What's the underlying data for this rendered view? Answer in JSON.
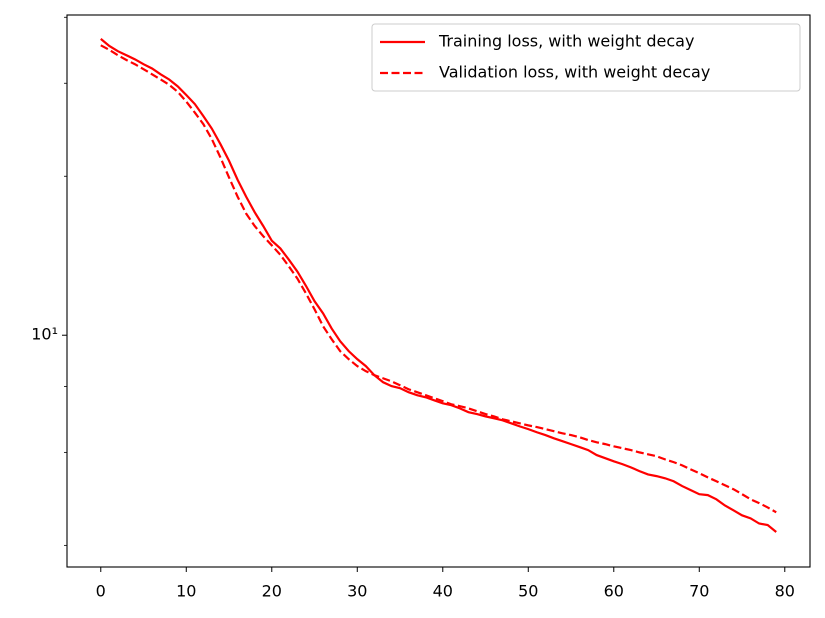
{
  "chart_data": {
    "type": "line",
    "xscale": "linear",
    "yscale": "log",
    "x": [
      0,
      1,
      2,
      3,
      4,
      5,
      6,
      7,
      8,
      9,
      10,
      11,
      12,
      13,
      14,
      15,
      16,
      17,
      18,
      19,
      20,
      21,
      22,
      23,
      24,
      25,
      26,
      27,
      28,
      29,
      30,
      31,
      32,
      33,
      34,
      35,
      36,
      37,
      38,
      39,
      40,
      41,
      42,
      43,
      44,
      45,
      46,
      47,
      48,
      49,
      50,
      51,
      52,
      53,
      54,
      55,
      56,
      57,
      58,
      59,
      60,
      61,
      62,
      63,
      64,
      65,
      66,
      67,
      68,
      69,
      70,
      71,
      72,
      73,
      74,
      75,
      76,
      77,
      78,
      79
    ],
    "series": [
      {
        "name": "Training loss, with weight decay",
        "color": "#ff0000",
        "linestyle": "solid",
        "values": [
          36.4,
          35.3,
          34.5,
          33.9,
          33.3,
          32.6,
          32.0,
          31.2,
          30.5,
          29.6,
          28.5,
          27.4,
          26.0,
          24.6,
          23.0,
          21.4,
          19.7,
          18.3,
          17.1,
          16.1,
          15.1,
          14.6,
          13.9,
          13.2,
          12.4,
          11.6,
          11.0,
          10.3,
          9.74,
          9.33,
          9.01,
          8.74,
          8.4,
          8.15,
          8.01,
          7.94,
          7.8,
          7.7,
          7.63,
          7.53,
          7.43,
          7.37,
          7.27,
          7.15,
          7.09,
          7.02,
          6.96,
          6.9,
          6.81,
          6.72,
          6.64,
          6.55,
          6.47,
          6.38,
          6.3,
          6.22,
          6.14,
          6.06,
          5.93,
          5.85,
          5.77,
          5.7,
          5.62,
          5.53,
          5.45,
          5.41,
          5.36,
          5.29,
          5.18,
          5.09,
          5.0,
          4.98,
          4.89,
          4.76,
          4.66,
          4.56,
          4.5,
          4.4,
          4.37,
          4.24
        ]
      },
      {
        "name": "Validation loss, with weight decay",
        "color": "#ff0000",
        "linestyle": "dashed",
        "values": [
          35.4,
          34.7,
          33.9,
          33.2,
          32.6,
          31.9,
          31.2,
          30.5,
          29.8,
          28.9,
          27.7,
          26.4,
          25.1,
          23.5,
          21.7,
          19.9,
          18.3,
          17.0,
          16.1,
          15.4,
          14.8,
          14.2,
          13.5,
          12.8,
          12.0,
          11.2,
          10.4,
          9.83,
          9.33,
          9.01,
          8.74,
          8.55,
          8.4,
          8.29,
          8.18,
          8.04,
          7.9,
          7.8,
          7.7,
          7.6,
          7.5,
          7.4,
          7.34,
          7.27,
          7.18,
          7.09,
          7.02,
          6.93,
          6.87,
          6.81,
          6.75,
          6.7,
          6.64,
          6.58,
          6.52,
          6.47,
          6.41,
          6.33,
          6.27,
          6.22,
          6.16,
          6.11,
          6.06,
          6.0,
          5.95,
          5.9,
          5.82,
          5.75,
          5.67,
          5.57,
          5.48,
          5.38,
          5.29,
          5.2,
          5.11,
          5.0,
          4.89,
          4.81,
          4.72,
          4.62
        ]
      }
    ],
    "xlim": [
      -3.95,
      82.95
    ],
    "xticks": [
      0,
      10,
      20,
      30,
      40,
      50,
      60,
      70,
      80
    ],
    "ylim": [
      3.64,
      40.4
    ],
    "yticks": [
      {
        "value": 10,
        "label": "10¹"
      }
    ],
    "yminorticks": [
      4,
      6,
      8,
      20,
      30,
      40
    ],
    "legend": "upper right",
    "grid": false
  }
}
